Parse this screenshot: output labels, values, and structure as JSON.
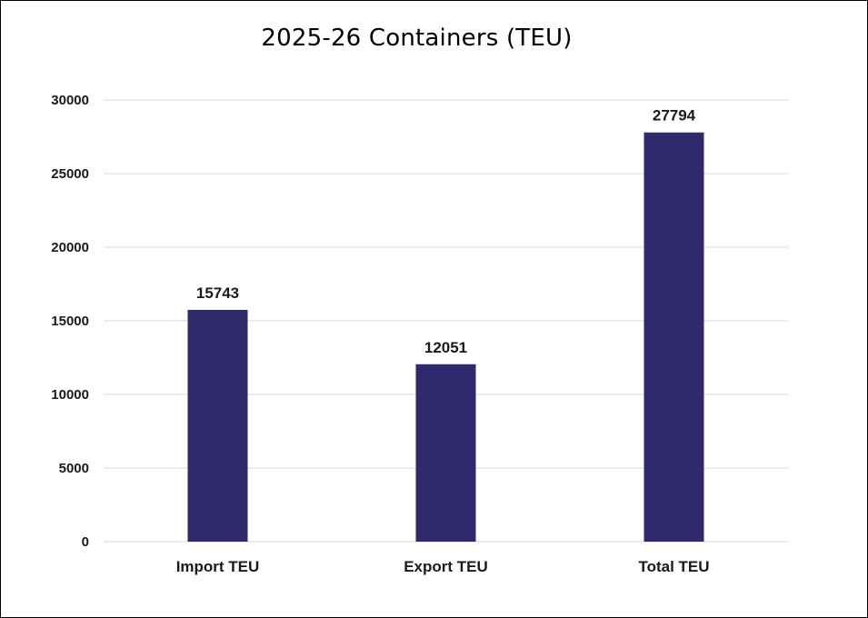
{
  "chart_data": {
    "type": "bar",
    "title": "2025-26 Containers (TEU)",
    "categories": [
      "Import TEU",
      "Export TEU",
      "Total TEU"
    ],
    "values": [
      15743,
      12051,
      27794
    ],
    "data_labels": [
      "15743",
      "12051",
      "27794"
    ],
    "xlabel": "",
    "ylabel": "",
    "ylim": [
      0,
      30000
    ],
    "yticks": [
      0,
      5000,
      10000,
      15000,
      20000,
      25000,
      30000
    ],
    "ytick_labels": [
      "0",
      "5000",
      "10000",
      "15000",
      "20000",
      "25000",
      "30000"
    ],
    "grid": true,
    "legend": "none",
    "bar_color": "#2e2a6b",
    "grid_color": "#d9d9d9"
  }
}
